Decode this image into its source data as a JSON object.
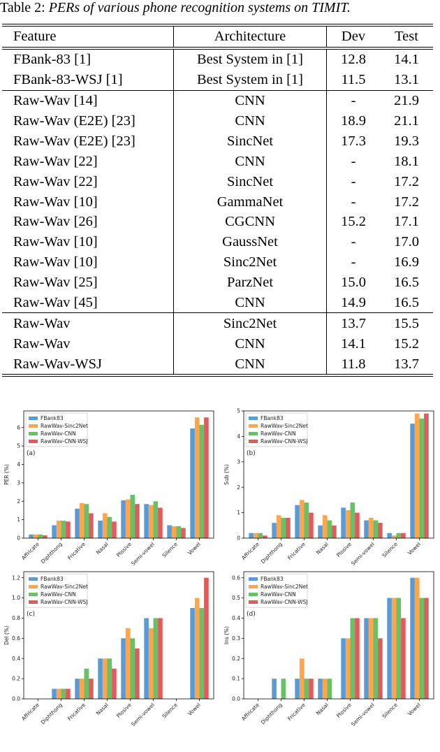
{
  "caption": {
    "label": "Table 2:",
    "text": "PERs of various phone recognition systems on TIMIT."
  },
  "table": {
    "header": [
      "Feature",
      "Architecture",
      "Dev",
      "Test"
    ],
    "groups": [
      [
        [
          "FBank-83 [1]",
          "Best System in [1]",
          "12.8",
          "14.1"
        ],
        [
          "FBank-83-WSJ [1]",
          "Best System in [1]",
          "11.5",
          "13.1"
        ]
      ],
      [
        [
          "Raw-Wav [14]",
          "CNN",
          "-",
          "21.9"
        ],
        [
          "Raw-Wav (E2E) [23]",
          "CNN",
          "18.9",
          "21.1"
        ],
        [
          "Raw-Wav (E2E) [23]",
          "SincNet",
          "17.3",
          "19.3"
        ],
        [
          "Raw-Wav [22]",
          "CNN",
          "-",
          "18.1"
        ],
        [
          "Raw-Wav [22]",
          "SincNet",
          "-",
          "17.2"
        ],
        [
          "Raw-Wav [10]",
          "GammaNet",
          "-",
          "17.2"
        ],
        [
          "Raw-Wav [26]",
          "CGCNN",
          "15.2",
          "17.1"
        ],
        [
          "Raw-Wav [10]",
          "GaussNet",
          "-",
          "17.0"
        ],
        [
          "Raw-Wav [10]",
          "Sinc2Net",
          "-",
          "16.9"
        ],
        [
          "Raw-Wav [25]",
          "ParzNet",
          "15.0",
          "16.5"
        ],
        [
          "Raw-Wav [45]",
          "CNN",
          "14.9",
          "16.5"
        ]
      ],
      [
        [
          "Raw-Wav",
          "Sinc2Net",
          "13.7",
          "15.5"
        ],
        [
          "Raw-Wav",
          "CNN",
          "14.1",
          "15.2"
        ],
        [
          "Raw-Wav-WSJ",
          "CNN",
          "11.8",
          "13.7"
        ]
      ]
    ]
  },
  "chart_data": [
    {
      "type": "bar",
      "annotation": "(a)",
      "ylabel": "PER (%)",
      "categories": [
        "Affricate",
        "Diphthong",
        "Fricative",
        "Nasal",
        "Plosive",
        "Semi-vowel",
        "Silence",
        "Vowel"
      ],
      "series": [
        {
          "name": "FBank83",
          "color": "#5b9bd5",
          "values": [
            0.2,
            0.7,
            1.6,
            0.95,
            2.05,
            1.85,
            0.7,
            5.95
          ]
        },
        {
          "name": "RawWav-Sinc2Net",
          "color": "#ffa64d",
          "values": [
            0.2,
            0.95,
            1.9,
            1.35,
            2.1,
            1.8,
            0.65,
            6.55
          ]
        },
        {
          "name": "RawWav-CNN",
          "color": "#6abf69",
          "values": [
            0.2,
            0.95,
            1.85,
            1.15,
            2.35,
            2.0,
            0.65,
            6.15
          ]
        },
        {
          "name": "RawWav-CNN-WSJ",
          "color": "#dd5c5c",
          "values": [
            0.15,
            0.9,
            1.35,
            0.9,
            1.85,
            1.65,
            0.55,
            6.55
          ]
        }
      ],
      "ylim": [
        0,
        6.9
      ],
      "yticks": [
        0,
        1,
        2,
        3,
        4,
        5,
        6
      ]
    },
    {
      "type": "bar",
      "annotation": "(b)",
      "ylabel": "Sub (%)",
      "categories": [
        "Affricate",
        "Diphthong",
        "Fricative",
        "Nasal",
        "Plosive",
        "Semi-vowel",
        "Silence",
        "Vowel"
      ],
      "series": [
        {
          "name": "FBank83",
          "color": "#5b9bd5",
          "values": [
            0.2,
            0.6,
            1.3,
            0.5,
            1.2,
            0.7,
            0.2,
            4.5
          ]
        },
        {
          "name": "RawWav-Sinc2Net",
          "color": "#ffa64d",
          "values": [
            0.2,
            0.9,
            1.5,
            0.9,
            1.1,
            0.8,
            0.1,
            4.9
          ]
        },
        {
          "name": "RawWav-CNN",
          "color": "#6abf69",
          "values": [
            0.2,
            0.8,
            1.4,
            0.7,
            1.4,
            0.7,
            0.2,
            4.7
          ]
        },
        {
          "name": "RawWav-CNN-WSJ",
          "color": "#dd5c5c",
          "values": [
            0.1,
            0.8,
            1.0,
            0.5,
            1.0,
            0.6,
            0.2,
            4.9
          ]
        }
      ],
      "ylim": [
        0,
        5
      ],
      "yticks": [
        0,
        1,
        2,
        3,
        4,
        5
      ]
    },
    {
      "type": "bar",
      "annotation": "(c)",
      "ylabel": "Del (%)",
      "categories": [
        "Affricate",
        "Diphthong",
        "Fricative",
        "Nasal",
        "Plosive",
        "Semi-vowel",
        "Silence",
        "Vowel"
      ],
      "series": [
        {
          "name": "FBank83",
          "color": "#5b9bd5",
          "values": [
            0,
            0.1,
            0.2,
            0.4,
            0.6,
            0.8,
            0,
            0.9
          ]
        },
        {
          "name": "RawWav-Sinc2Net",
          "color": "#ffa64d",
          "values": [
            0,
            0.1,
            0.2,
            0.4,
            0.7,
            0.7,
            0,
            1.0
          ]
        },
        {
          "name": "RawWav-CNN",
          "color": "#6abf69",
          "values": [
            0,
            0.1,
            0.3,
            0.4,
            0.6,
            0.8,
            0,
            0.9
          ]
        },
        {
          "name": "RawWav-CNN-WSJ",
          "color": "#dd5c5c",
          "values": [
            0,
            0.1,
            0.2,
            0.3,
            0.5,
            0.8,
            0,
            1.2
          ]
        }
      ],
      "ylim": [
        0,
        1.26
      ],
      "yticks": [
        {
          "value": 0,
          "label": "0.0"
        },
        {
          "value": 0.2,
          "label": "0.2"
        },
        {
          "value": 0.4,
          "label": "0.4"
        },
        {
          "value": 0.6,
          "label": "0.6"
        },
        {
          "value": 0.8,
          "label": "0.8"
        },
        {
          "value": 1,
          "label": "1.0"
        },
        {
          "value": 1.2,
          "label": "1.2"
        }
      ]
    },
    {
      "type": "bar",
      "annotation": "(d)",
      "ylabel": "Ins (%)",
      "categories": [
        "Affricate",
        "Diphthong",
        "Fricative",
        "Nasal",
        "Plosive",
        "Semi-vowel",
        "Silence",
        "Vowel"
      ],
      "series": [
        {
          "name": "FBank83",
          "color": "#5b9bd5",
          "values": [
            0,
            0.1,
            0.1,
            0.1,
            0.3,
            0.4,
            0.5,
            0.6
          ]
        },
        {
          "name": "RawWav-Sinc2Net",
          "color": "#ffa64d",
          "values": [
            0,
            0,
            0.2,
            0.1,
            0.3,
            0.4,
            0.5,
            0.6
          ]
        },
        {
          "name": "RawWav-CNN",
          "color": "#6abf69",
          "values": [
            0,
            0.1,
            0.1,
            0.1,
            0.4,
            0.4,
            0.5,
            0.5
          ]
        },
        {
          "name": "RawWav-CNN-WSJ",
          "color": "#dd5c5c",
          "values": [
            0,
            0,
            0.1,
            0,
            0.4,
            0.3,
            0.4,
            0.5
          ]
        }
      ],
      "ylim": [
        0,
        0.63
      ],
      "yticks": [
        {
          "value": 0,
          "label": "0.0"
        },
        {
          "value": 0.1,
          "label": "0.1"
        },
        {
          "value": 0.2,
          "label": "0.2"
        },
        {
          "value": 0.3,
          "label": "0.3"
        },
        {
          "value": 0.4,
          "label": "0.4"
        },
        {
          "value": 0.5,
          "label": "0.5"
        },
        {
          "value": 0.6,
          "label": "0.6"
        }
      ]
    }
  ]
}
